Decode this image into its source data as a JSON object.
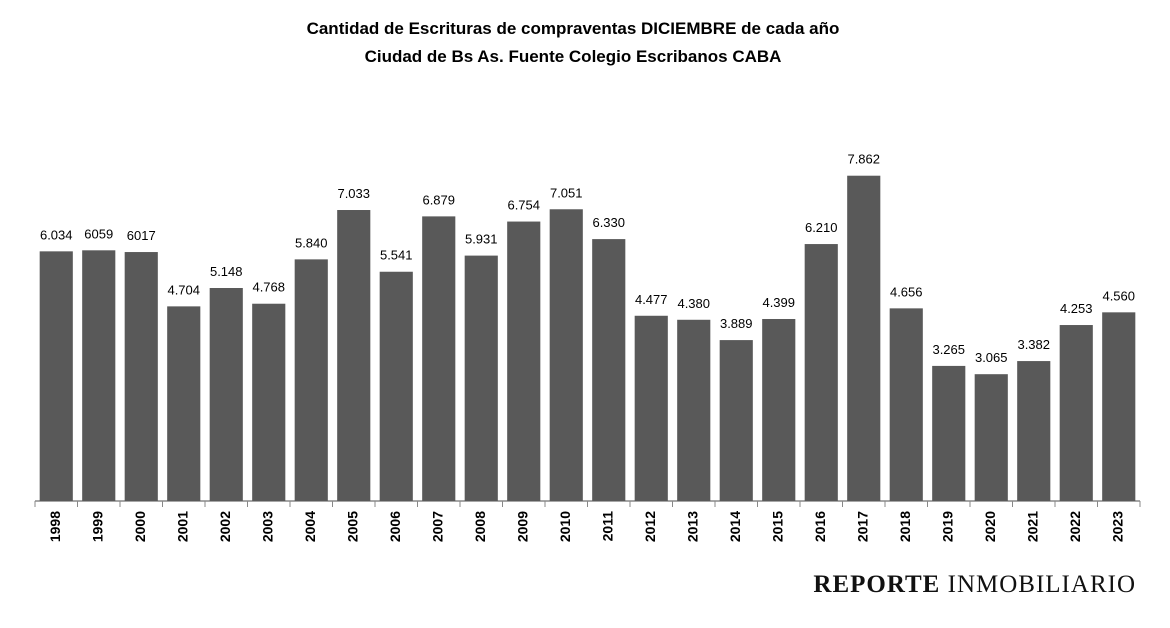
{
  "chart_data": {
    "type": "bar",
    "title": "Cantidad de Escrituras de compraventas  DICIEMBRE de cada año",
    "subtitle": "Ciudad de Bs As. Fuente Colegio Escribanos CABA",
    "categories": [
      "1998",
      "1999",
      "2000",
      "2001",
      "2002",
      "2003",
      "2004",
      "2005",
      "2006",
      "2007",
      "2008",
      "2009",
      "2010",
      "2011",
      "2012",
      "2013",
      "2014",
      "2015",
      "2016",
      "2017",
      "2018",
      "2019",
      "2020",
      "2021",
      "2022",
      "2023"
    ],
    "values": [
      6034,
      6059,
      6017,
      4704,
      5148,
      4768,
      5840,
      7033,
      5541,
      6879,
      5931,
      6754,
      7051,
      6330,
      4477,
      4380,
      3889,
      4399,
      6210,
      7862,
      4656,
      3265,
      3065,
      3382,
      4253,
      4560
    ],
    "value_labels": [
      "6.034",
      "6059",
      "6017",
      "4.704",
      "5.148",
      "4.768",
      "5.840",
      "7.033",
      "5.541",
      "6.879",
      "5.931",
      "6.754",
      "7.051",
      "6.330",
      "4.477",
      "4.380",
      "3.889",
      "4.399",
      "6.210",
      "7.862",
      "4.656",
      "3.265",
      "3.065",
      "3.382",
      "4.253",
      "4.560"
    ],
    "color": "#595959",
    "ylim": [
      0,
      8000
    ],
    "grid": false
  },
  "brand": {
    "bold": "REPORTE",
    "regular": "INMOBILIARIO"
  }
}
